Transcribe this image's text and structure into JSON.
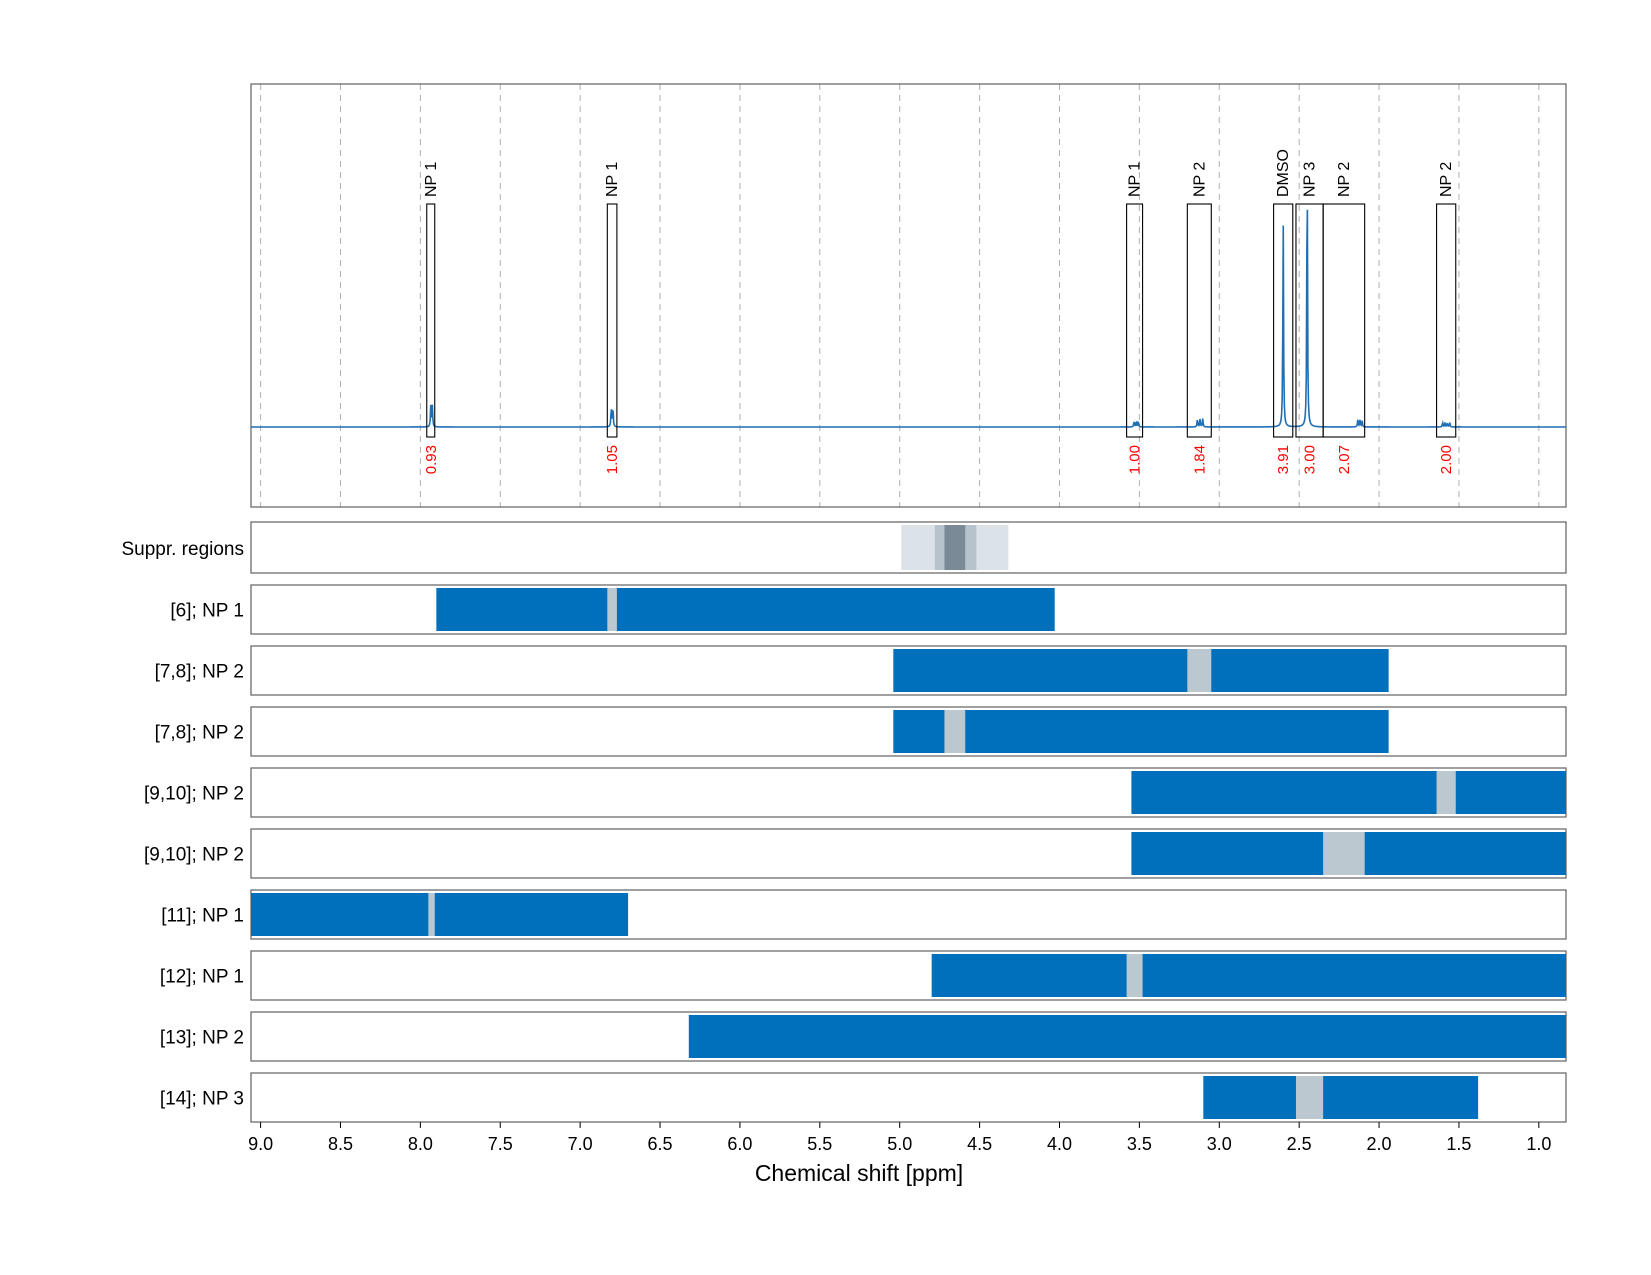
{
  "chart_data": {
    "type": "nmr-spectrum-with-region-panels",
    "xlabel": "Chemical shift [ppm]",
    "xlim": [
      9.06,
      0.83
    ],
    "x_reversed": true,
    "xticks": [
      9.0,
      8.5,
      8.0,
      7.5,
      7.0,
      6.5,
      6.0,
      5.5,
      5.0,
      4.5,
      4.0,
      3.5,
      3.0,
      2.5,
      2.0,
      1.5,
      1.0
    ],
    "xtick_labels": [
      "9.0",
      "8.5",
      "8.0",
      "7.5",
      "7.0",
      "6.5",
      "6.0",
      "5.5",
      "5.0",
      "4.5",
      "4.0",
      "3.5",
      "3.0",
      "2.5",
      "2.0",
      "1.5",
      "1.0"
    ],
    "grid": true,
    "colors": {
      "spectrum": "#1f6fb5",
      "region": "#0070bd",
      "gap": "#bcc8cf",
      "integral": "#ff0000",
      "suppr_light": "#dbe2e8",
      "suppr_mid": "#b7c3cc",
      "suppr_dark": "#7a8b97"
    },
    "spectrum_peaks": [
      {
        "x": 7.93,
        "height": 0.12,
        "width": 0.02,
        "multiplet": 2
      },
      {
        "x": 6.8,
        "height": 0.12,
        "width": 0.02,
        "multiplet": 2
      },
      {
        "x": 3.52,
        "height": 0.05,
        "width": 0.04,
        "multiplet": 3
      },
      {
        "x": 3.12,
        "height": 0.07,
        "width": 0.05,
        "multiplet": 3
      },
      {
        "x": 2.6,
        "height": 0.4,
        "width": 0.01,
        "multiplet": 1
      },
      {
        "x": 2.6,
        "height": 0.2,
        "width": 0.01,
        "multiplet": 1
      },
      {
        "x": 2.45,
        "height": 0.82,
        "width": 0.01,
        "multiplet": 1
      },
      {
        "x": 2.12,
        "height": 0.06,
        "width": 0.04,
        "multiplet": 3
      },
      {
        "x": 1.58,
        "height": 0.05,
        "width": 0.06,
        "multiplet": 4
      }
    ],
    "annotations": [
      {
        "label": "NP 1",
        "x1": 7.96,
        "x2": 7.91,
        "integral": "0.93"
      },
      {
        "label": "NP 1",
        "x1": 6.83,
        "x2": 6.77,
        "integral": "1.05"
      },
      {
        "label": "NP 1",
        "x1": 3.58,
        "x2": 3.48,
        "integral": "1.00"
      },
      {
        "label": "NP 2",
        "x1": 3.2,
        "x2": 3.05,
        "integral": "1.84"
      },
      {
        "label": "DMSO",
        "x1": 2.66,
        "x2": 2.54,
        "integral": "3.91"
      },
      {
        "label": "NP 3",
        "x1": 2.52,
        "x2": 2.35,
        "integral": "3.00"
      },
      {
        "label": "NP 2",
        "x1": 2.35,
        "x2": 2.09,
        "integral": "2.07"
      },
      {
        "label": "NP 2",
        "x1": 1.64,
        "x2": 1.52,
        "integral": "2.00"
      }
    ],
    "suppressed_regions": {
      "label": "Suppr. regions",
      "layers": [
        {
          "x1": 4.99,
          "x2": 4.32,
          "shade": "light"
        },
        {
          "x1": 4.78,
          "x2": 4.52,
          "shade": "mid"
        },
        {
          "x1": 4.72,
          "x2": 4.59,
          "shade": "dark"
        }
      ]
    },
    "rows": [
      {
        "label": "[6]; NP 1",
        "x1": 7.9,
        "x2": 4.03,
        "gaps": [
          [
            6.83,
            6.77
          ]
        ]
      },
      {
        "label": "[7,8]; NP 2",
        "x1": 5.04,
        "x2": 1.94,
        "gaps": [
          [
            3.2,
            3.05
          ]
        ]
      },
      {
        "label": "[7,8]; NP 2",
        "x1": 5.04,
        "x2": 1.94,
        "gaps": [
          [
            4.72,
            4.59
          ]
        ]
      },
      {
        "label": "[9,10]; NP 2",
        "x1": 3.55,
        "x2": 0.83,
        "gaps": [
          [
            1.64,
            1.52
          ]
        ]
      },
      {
        "label": "[9,10]; NP 2",
        "x1": 3.55,
        "x2": 0.83,
        "gaps": [
          [
            2.35,
            2.09
          ]
        ]
      },
      {
        "label": "[11]; NP 1",
        "x1": 9.06,
        "x2": 6.7,
        "gaps": [
          [
            7.95,
            7.91
          ]
        ]
      },
      {
        "label": "[12]; NP 1",
        "x1": 4.8,
        "x2": 0.83,
        "gaps": [
          [
            3.58,
            3.48
          ]
        ]
      },
      {
        "label": "[13]; NP 2",
        "x1": 6.32,
        "x2": 0.83,
        "gaps": []
      },
      {
        "label": "[14]; NP 3",
        "x1": 3.1,
        "x2": 1.38,
        "gaps": [
          [
            2.52,
            2.35
          ]
        ]
      }
    ]
  }
}
